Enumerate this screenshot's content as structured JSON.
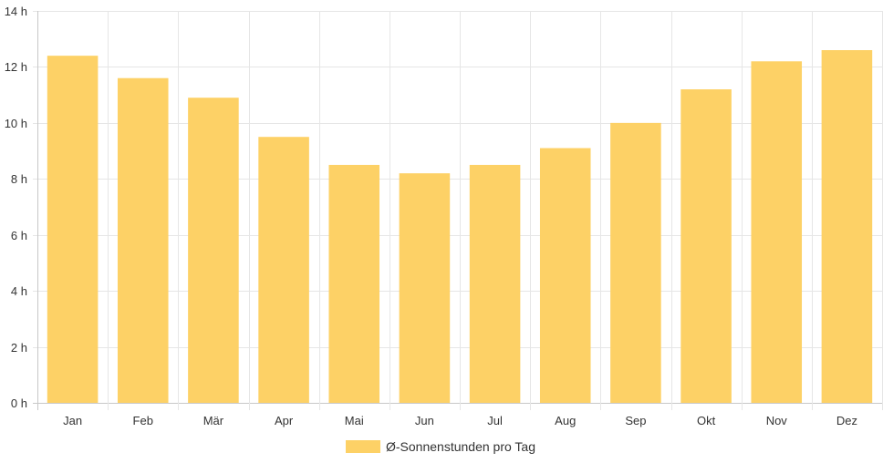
{
  "chart_data": {
    "type": "bar",
    "categories": [
      "Jan",
      "Feb",
      "Mär",
      "Apr",
      "Mai",
      "Jun",
      "Jul",
      "Aug",
      "Sep",
      "Okt",
      "Nov",
      "Dez"
    ],
    "series": [
      {
        "name": "Ø-Sonnenstunden pro Tag",
        "values": [
          12.4,
          11.6,
          10.9,
          9.5,
          8.5,
          8.2,
          8.5,
          9.1,
          10.0,
          11.2,
          12.2,
          12.6
        ]
      }
    ],
    "y_unit": "h",
    "ylim": [
      0,
      14
    ],
    "y_ticks": [
      0,
      2,
      4,
      6,
      8,
      10,
      12,
      14
    ],
    "y_tick_labels": [
      "0 h",
      "2 h",
      "4 h",
      "6 h",
      "8 h",
      "10 h",
      "12 h",
      "14 h"
    ],
    "grid": true,
    "legend_position": "bottom",
    "colors": {
      "bar": "#fdd166",
      "grid": "#e6e6e6",
      "axis": "#c8c8c8"
    }
  }
}
